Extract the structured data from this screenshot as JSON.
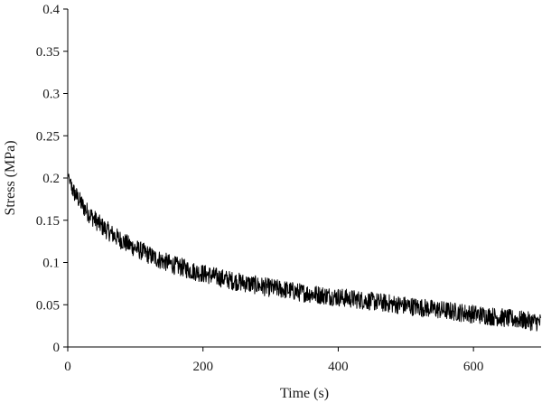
{
  "chart_data": {
    "type": "line",
    "title": "",
    "xlabel": "Time (s)",
    "ylabel": "Stress (MPa)",
    "xlim": [
      0,
      700
    ],
    "ylim": [
      0,
      0.4
    ],
    "x_ticks": [
      0,
      200,
      400,
      600
    ],
    "y_ticks": [
      0,
      0.05,
      0.1,
      0.15,
      0.2,
      0.25,
      0.3,
      0.35,
      0.4
    ],
    "x_tick_labels": [
      "0",
      "200",
      "400",
      "600"
    ],
    "y_tick_labels": [
      "0",
      "0.05",
      "0.1",
      "0.15",
      "0.2",
      "0.25",
      "0.3",
      "0.35",
      "0.4"
    ],
    "grid": false,
    "legend": "none",
    "line_color": "#000000",
    "series": [
      {
        "values": [
          [
            0,
            0.205
          ],
          [
            5,
            0.19
          ],
          [
            10,
            0.182
          ],
          [
            15,
            0.176
          ],
          [
            20,
            0.17
          ],
          [
            25,
            0.164
          ],
          [
            30,
            0.159
          ],
          [
            35,
            0.155
          ],
          [
            40,
            0.151
          ],
          [
            45,
            0.147
          ],
          [
            50,
            0.143
          ],
          [
            55,
            0.14
          ],
          [
            60,
            0.137
          ],
          [
            70,
            0.131
          ],
          [
            80,
            0.126
          ],
          [
            90,
            0.121
          ],
          [
            100,
            0.117
          ],
          [
            110,
            0.113
          ],
          [
            120,
            0.109
          ],
          [
            130,
            0.105
          ],
          [
            140,
            0.102
          ],
          [
            150,
            0.099
          ],
          [
            160,
            0.096
          ],
          [
            170,
            0.094
          ],
          [
            180,
            0.091
          ],
          [
            190,
            0.089
          ],
          [
            200,
            0.087
          ],
          [
            220,
            0.083
          ],
          [
            240,
            0.079
          ],
          [
            260,
            0.076
          ],
          [
            280,
            0.073
          ],
          [
            300,
            0.07
          ],
          [
            320,
            0.068
          ],
          [
            340,
            0.065
          ],
          [
            360,
            0.063
          ],
          [
            380,
            0.061
          ],
          [
            400,
            0.059
          ],
          [
            420,
            0.057
          ],
          [
            440,
            0.055
          ],
          [
            460,
            0.053
          ],
          [
            480,
            0.051
          ],
          [
            500,
            0.049
          ],
          [
            520,
            0.047
          ],
          [
            540,
            0.045
          ],
          [
            560,
            0.043
          ],
          [
            580,
            0.041
          ],
          [
            600,
            0.039
          ],
          [
            620,
            0.037
          ],
          [
            640,
            0.035
          ],
          [
            660,
            0.033
          ],
          [
            680,
            0.031
          ],
          [
            700,
            0.029
          ]
        ]
      }
    ]
  }
}
